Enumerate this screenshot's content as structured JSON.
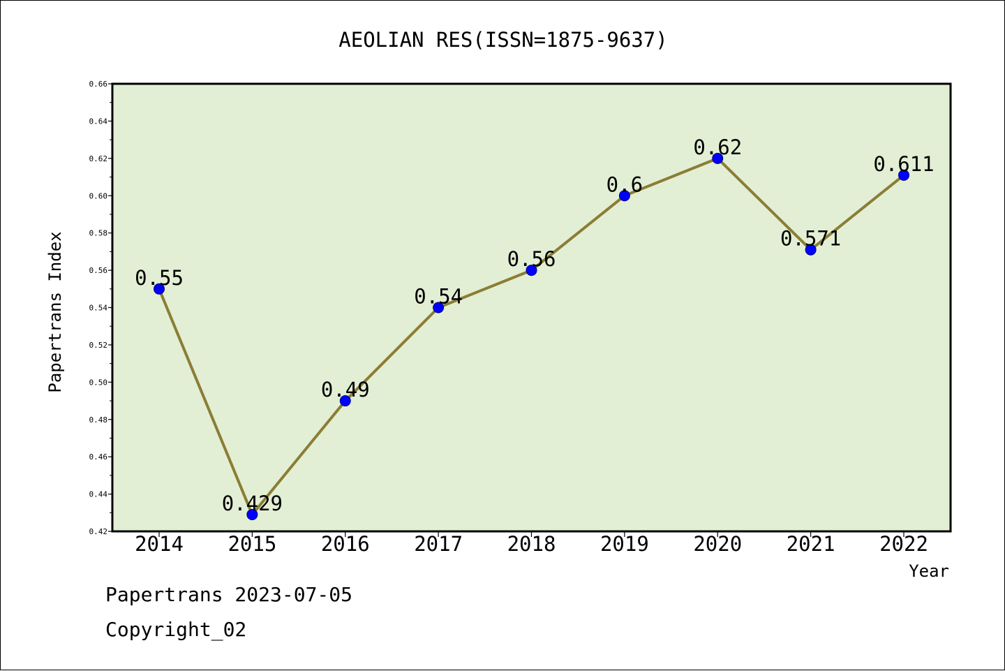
{
  "footer": {
    "line1": "Papertrans 2023-07-05",
    "line2": "Copyright_02"
  },
  "colors": {
    "plot_background": "#e2efd4",
    "line": "#8b7d35",
    "marker": "#0000ff",
    "marker_edge": "#000080",
    "frame": "#000000"
  },
  "chart_data": {
    "type": "line",
    "title": "AEOLIAN RES(ISSN=1875-9637)",
    "xlabel": "Year",
    "ylabel": "Papertrans Index",
    "categories": [
      "2014",
      "2015",
      "2016",
      "2017",
      "2018",
      "2019",
      "2020",
      "2021",
      "2022"
    ],
    "values": [
      0.55,
      0.429,
      0.49,
      0.54,
      0.56,
      0.6,
      0.62,
      0.571,
      0.611
    ],
    "data_labels": [
      "0.55",
      "0.429",
      "0.49",
      "0.54",
      "0.56",
      "0.6",
      "0.62",
      "0.571",
      "0.611"
    ],
    "ylim": [
      0.42,
      0.66
    ],
    "yticks": [
      "0.42",
      "0.44",
      "0.46",
      "0.48",
      "0.50",
      "0.52",
      "0.54",
      "0.56",
      "0.58",
      "0.60",
      "0.62",
      "0.64",
      "0.66"
    ],
    "grid": false,
    "legend": "none"
  }
}
